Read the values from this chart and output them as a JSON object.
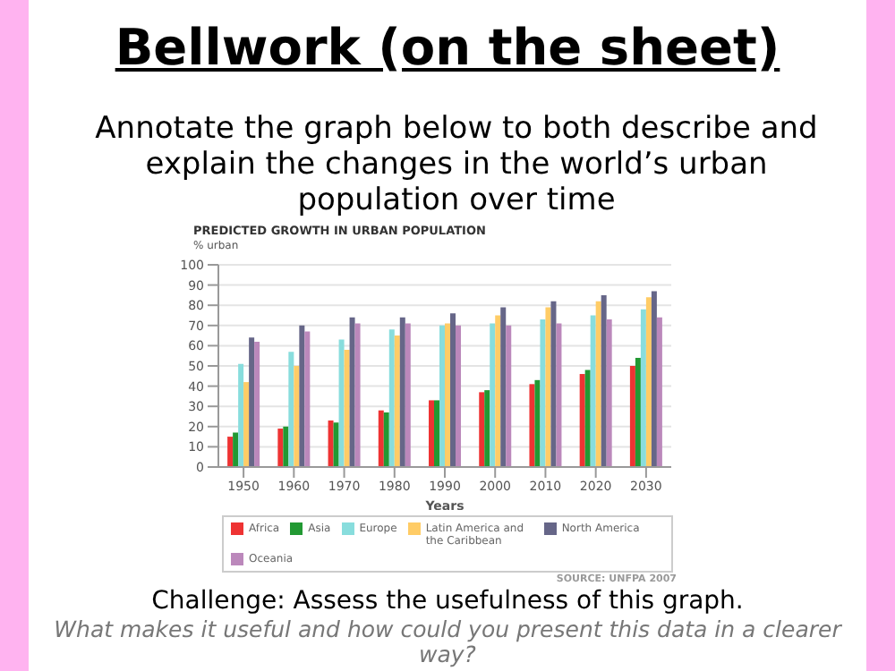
{
  "chart_data": {
    "type": "bar",
    "title": "PREDICTED GROWTH IN URBAN POPULATION",
    "xlabel": "Years",
    "ylabel": "% urban",
    "annotations": [
      "Bellwork (on the sheet)",
      "Annotate the graph below to both describe and explain the changes in the world’s urban population over time",
      "SOURCE: UNFPA 2007",
      "Challenge: Assess the usefulness of this graph.",
      "What makes it useful and how could you present this data in a clearer way?"
    ],
    "categories": [
      "1950",
      "1960",
      "1970",
      "1980",
      "1990",
      "2000",
      "2010",
      "2020",
      "2030"
    ],
    "series": [
      {
        "name": "Africa",
        "color": "#ee3333",
        "values": [
          15,
          19,
          23,
          28,
          33,
          37,
          41,
          46,
          50
        ]
      },
      {
        "name": "Asia",
        "color": "#229933",
        "values": [
          17,
          20,
          22,
          27,
          33,
          38,
          43,
          48,
          54
        ]
      },
      {
        "name": "Europe",
        "color": "#88dddd",
        "values": [
          51,
          57,
          63,
          68,
          70,
          71,
          73,
          75,
          78
        ]
      },
      {
        "name": "Latin America and the Caribbean",
        "color": "#ffcc66",
        "values": [
          42,
          50,
          58,
          65,
          71,
          75,
          79,
          82,
          84
        ]
      },
      {
        "name": "North America",
        "color": "#666688",
        "values": [
          64,
          70,
          74,
          74,
          76,
          79,
          82,
          85,
          87
        ]
      },
      {
        "name": "Oceania",
        "color": "#bb88bb",
        "values": [
          62,
          67,
          71,
          71,
          70,
          70,
          71,
          73,
          74
        ]
      }
    ],
    "ylim": [
      0,
      100
    ],
    "yticks": [
      0,
      10,
      20,
      30,
      40,
      50,
      60,
      70,
      80,
      90,
      100
    ],
    "grid": "y",
    "legend": "bottom"
  }
}
